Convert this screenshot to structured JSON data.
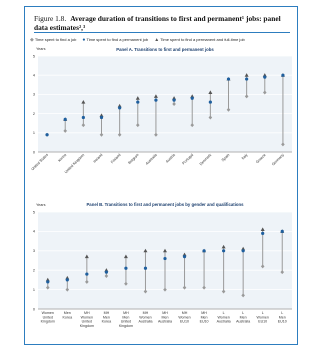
{
  "figure": {
    "number": "Figure 1.8.",
    "title": "Average duration of transitions to first and permanent¹ jobs: panel data estimates²,³"
  },
  "colors": {
    "border": "#2d7dbf",
    "series_line": "#9a9a9a",
    "first": "#9a9a9a",
    "permanent": "#1f5f9e",
    "fulltime": "#555555"
  },
  "chart_data": [
    {
      "type": "dot-range",
      "title": "Panel A. Transitions to first and permanent jobs",
      "ylabel": "Years",
      "ylim": [
        0,
        5
      ],
      "yticks": [
        0,
        1,
        2,
        3,
        4,
        5
      ],
      "categories": [
        "United States",
        "Korea",
        "United Kingdom",
        "Ireland",
        "Finland",
        "Belgium",
        "Australia",
        "Austria",
        "Portugal",
        "Denmark",
        "Spain",
        "Italy",
        "Greece",
        "Germany"
      ],
      "series": [
        {
          "name": "Time spent to find a job",
          "marker": "diamond",
          "values": [
            0.9,
            1.1,
            1.4,
            0.9,
            0.9,
            1.4,
            0.9,
            2.5,
            1.4,
            1.8,
            2.2,
            2.9,
            3.1,
            0.4
          ]
        },
        {
          "name": "Time spent to find a permanent job",
          "marker": "circle",
          "values": [
            0.9,
            1.7,
            1.8,
            1.8,
            2.3,
            2.6,
            2.7,
            2.7,
            2.8,
            2.6,
            3.8,
            3.8,
            3.9,
            4.0
          ]
        },
        {
          "name": "Time spent to find a permanent and full-time job",
          "marker": "triangle",
          "values": [
            null,
            1.7,
            2.6,
            1.9,
            2.4,
            2.8,
            2.9,
            2.8,
            2.9,
            3.1,
            3.8,
            4.0,
            4.0,
            4.0
          ]
        }
      ]
    },
    {
      "type": "dot-range",
      "title": "Panel B. Transitions to first and permanent jobs by gender and qualifications",
      "ylabel": "Years",
      "ylim": [
        0,
        5
      ],
      "yticks": [
        0,
        1,
        2,
        3,
        4,
        5
      ],
      "categories": [
        [
          "Women",
          "United",
          "Kingdom"
        ],
        [
          "Men",
          "Korea"
        ],
        [
          "MH",
          "Women",
          "United",
          "Kingdom"
        ],
        [
          "MH",
          "Men",
          "Korea"
        ],
        [
          "MH",
          "Men",
          "United",
          "Kingdom"
        ],
        [
          "MH",
          "Women",
          "Australia"
        ],
        [
          "MH",
          "Men",
          "Australia"
        ],
        [
          "MH",
          "Women",
          "EU10"
        ],
        [
          "MH",
          "Men",
          "EU10"
        ],
        [
          "L",
          "Women",
          "Australia"
        ],
        [
          "L",
          "Men",
          "Australia"
        ],
        [
          "L",
          "Women",
          "EU10"
        ],
        [
          "L",
          "Men",
          "EU10"
        ]
      ],
      "series": [
        {
          "name": "Time spent to find a job",
          "marker": "diamond",
          "values": [
            1.1,
            1.0,
            1.4,
            1.7,
            1.3,
            0.9,
            1.0,
            1.1,
            1.1,
            0.9,
            0.7,
            2.2,
            1.9
          ]
        },
        {
          "name": "Time spent to find a permanent job",
          "marker": "circle",
          "values": [
            1.4,
            1.5,
            1.8,
            1.9,
            2.1,
            2.1,
            2.6,
            2.7,
            3.0,
            3.0,
            3.0,
            3.9,
            4.0
          ]
        },
        {
          "name": "Time spent to find a permanent and full-time job",
          "marker": "triangle",
          "values": [
            1.5,
            1.6,
            2.7,
            2.0,
            2.7,
            3.0,
            3.0,
            2.8,
            3.0,
            3.2,
            3.1,
            4.1,
            4.0
          ]
        }
      ]
    }
  ]
}
